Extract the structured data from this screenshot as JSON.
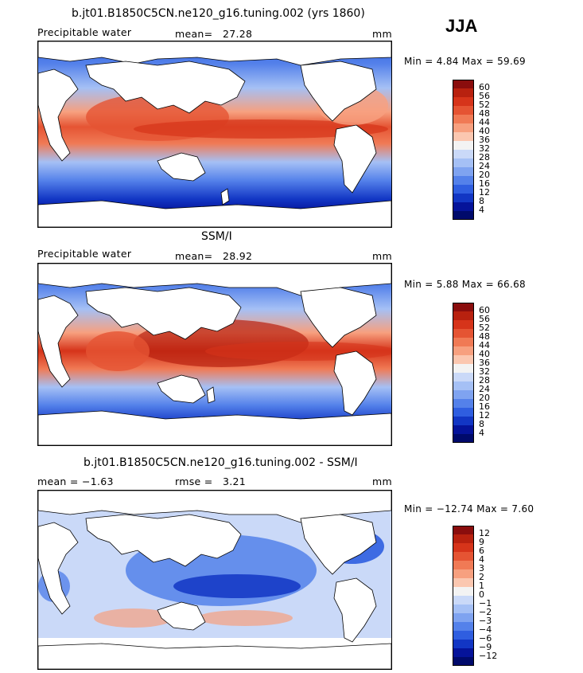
{
  "season": "JJA",
  "panels": [
    {
      "title": "b.jt01.B1850C5CN.ne120_g16.tuning.002 (yrs 1860)",
      "left_label": "Precipitable water",
      "stat_label": "mean=",
      "stat_value": "27.28",
      "units": "mm",
      "minmax": "Min =   4.84  Max =   59.69",
      "levels": [
        "60",
        "56",
        "52",
        "48",
        "44",
        "40",
        "36",
        "32",
        "28",
        "24",
        "20",
        "16",
        "12",
        "8",
        "4"
      ]
    },
    {
      "title": "SSM/I",
      "left_label": "Precipitable water",
      "stat_label": "mean=",
      "stat_value": "28.92",
      "units": "mm",
      "minmax": "Min =   5.88  Max =   66.68",
      "levels": [
        "60",
        "56",
        "52",
        "48",
        "44",
        "40",
        "36",
        "32",
        "28",
        "24",
        "20",
        "16",
        "12",
        "8",
        "4"
      ]
    },
    {
      "title": "b.jt01.B1850C5CN.ne120_g16.tuning.002 - SSM/I",
      "left_label": "mean =   −1.63",
      "stat_label": "rmse =",
      "stat_value": "3.21",
      "units": "mm",
      "minmax": "Min = −12.74  Max =    7.60",
      "levels": [
        "12",
        "9",
        "6",
        "4",
        "3",
        "2",
        "1",
        "0",
        "−1",
        "−2",
        "−3",
        "−4",
        "−6",
        "−9",
        "−12"
      ]
    }
  ],
  "colors": {
    "abs_scale": [
      "#8a0d0d",
      "#b8210f",
      "#d6341a",
      "#e55433",
      "#f07a55",
      "#f7a07f",
      "#fbc7b0",
      "#f3f3f3",
      "#cad9f8",
      "#a5c0f5",
      "#7fa3f0",
      "#5481ea",
      "#2f5ee0",
      "#1236c4",
      "#05139a",
      "#000a6b"
    ],
    "diff_scale": [
      "#8a0d0d",
      "#b8210f",
      "#d6341a",
      "#e55433",
      "#f07a55",
      "#f7a07f",
      "#fbc7b0",
      "#f3f3f3",
      "#cad9f8",
      "#a5c0f5",
      "#7fa3f0",
      "#5481ea",
      "#2f5ee0",
      "#1236c4",
      "#05139a",
      "#000a6b"
    ],
    "land": "#ffffff",
    "outline": "#000000"
  }
}
